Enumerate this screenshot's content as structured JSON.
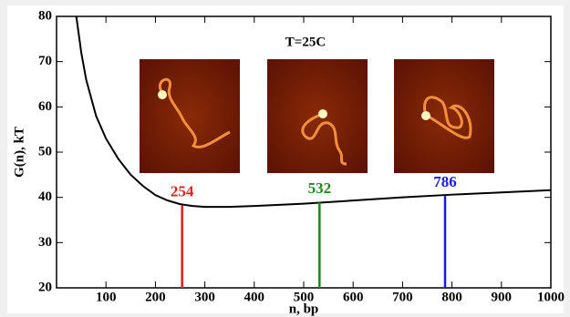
{
  "chart_data": {
    "type": "line",
    "annotation": "T=25C",
    "xlabel": "n, bp",
    "ylabel": "G(n), kT",
    "xlim": [
      0,
      1000
    ],
    "ylim": [
      20,
      80
    ],
    "xticks": [
      100,
      200,
      300,
      400,
      500,
      600,
      700,
      800,
      900,
      1000
    ],
    "yticks": [
      20,
      30,
      40,
      50,
      60,
      70,
      80
    ],
    "x": [
      40,
      50,
      60,
      80,
      100,
      125,
      150,
      175,
      200,
      225,
      250,
      275,
      300,
      350,
      400,
      500,
      600,
      700,
      800,
      900,
      1000
    ],
    "series": [
      {
        "color": "#000000",
        "values": [
          80,
          72,
          66,
          58,
          53,
          48.5,
          45,
          42.5,
          40.5,
          39.3,
          38.5,
          38.1,
          37.9,
          37.9,
          38.1,
          38.6,
          39.3,
          40,
          40.6,
          41.1,
          41.6
        ]
      }
    ],
    "markers": [
      {
        "x": 254,
        "top": 38.2,
        "color": "#e02020"
      },
      {
        "x": 532,
        "top": 38.9,
        "color": "#1a8a1a"
      },
      {
        "x": 786,
        "top": 40.3,
        "color": "#1a1ae0"
      }
    ]
  }
}
